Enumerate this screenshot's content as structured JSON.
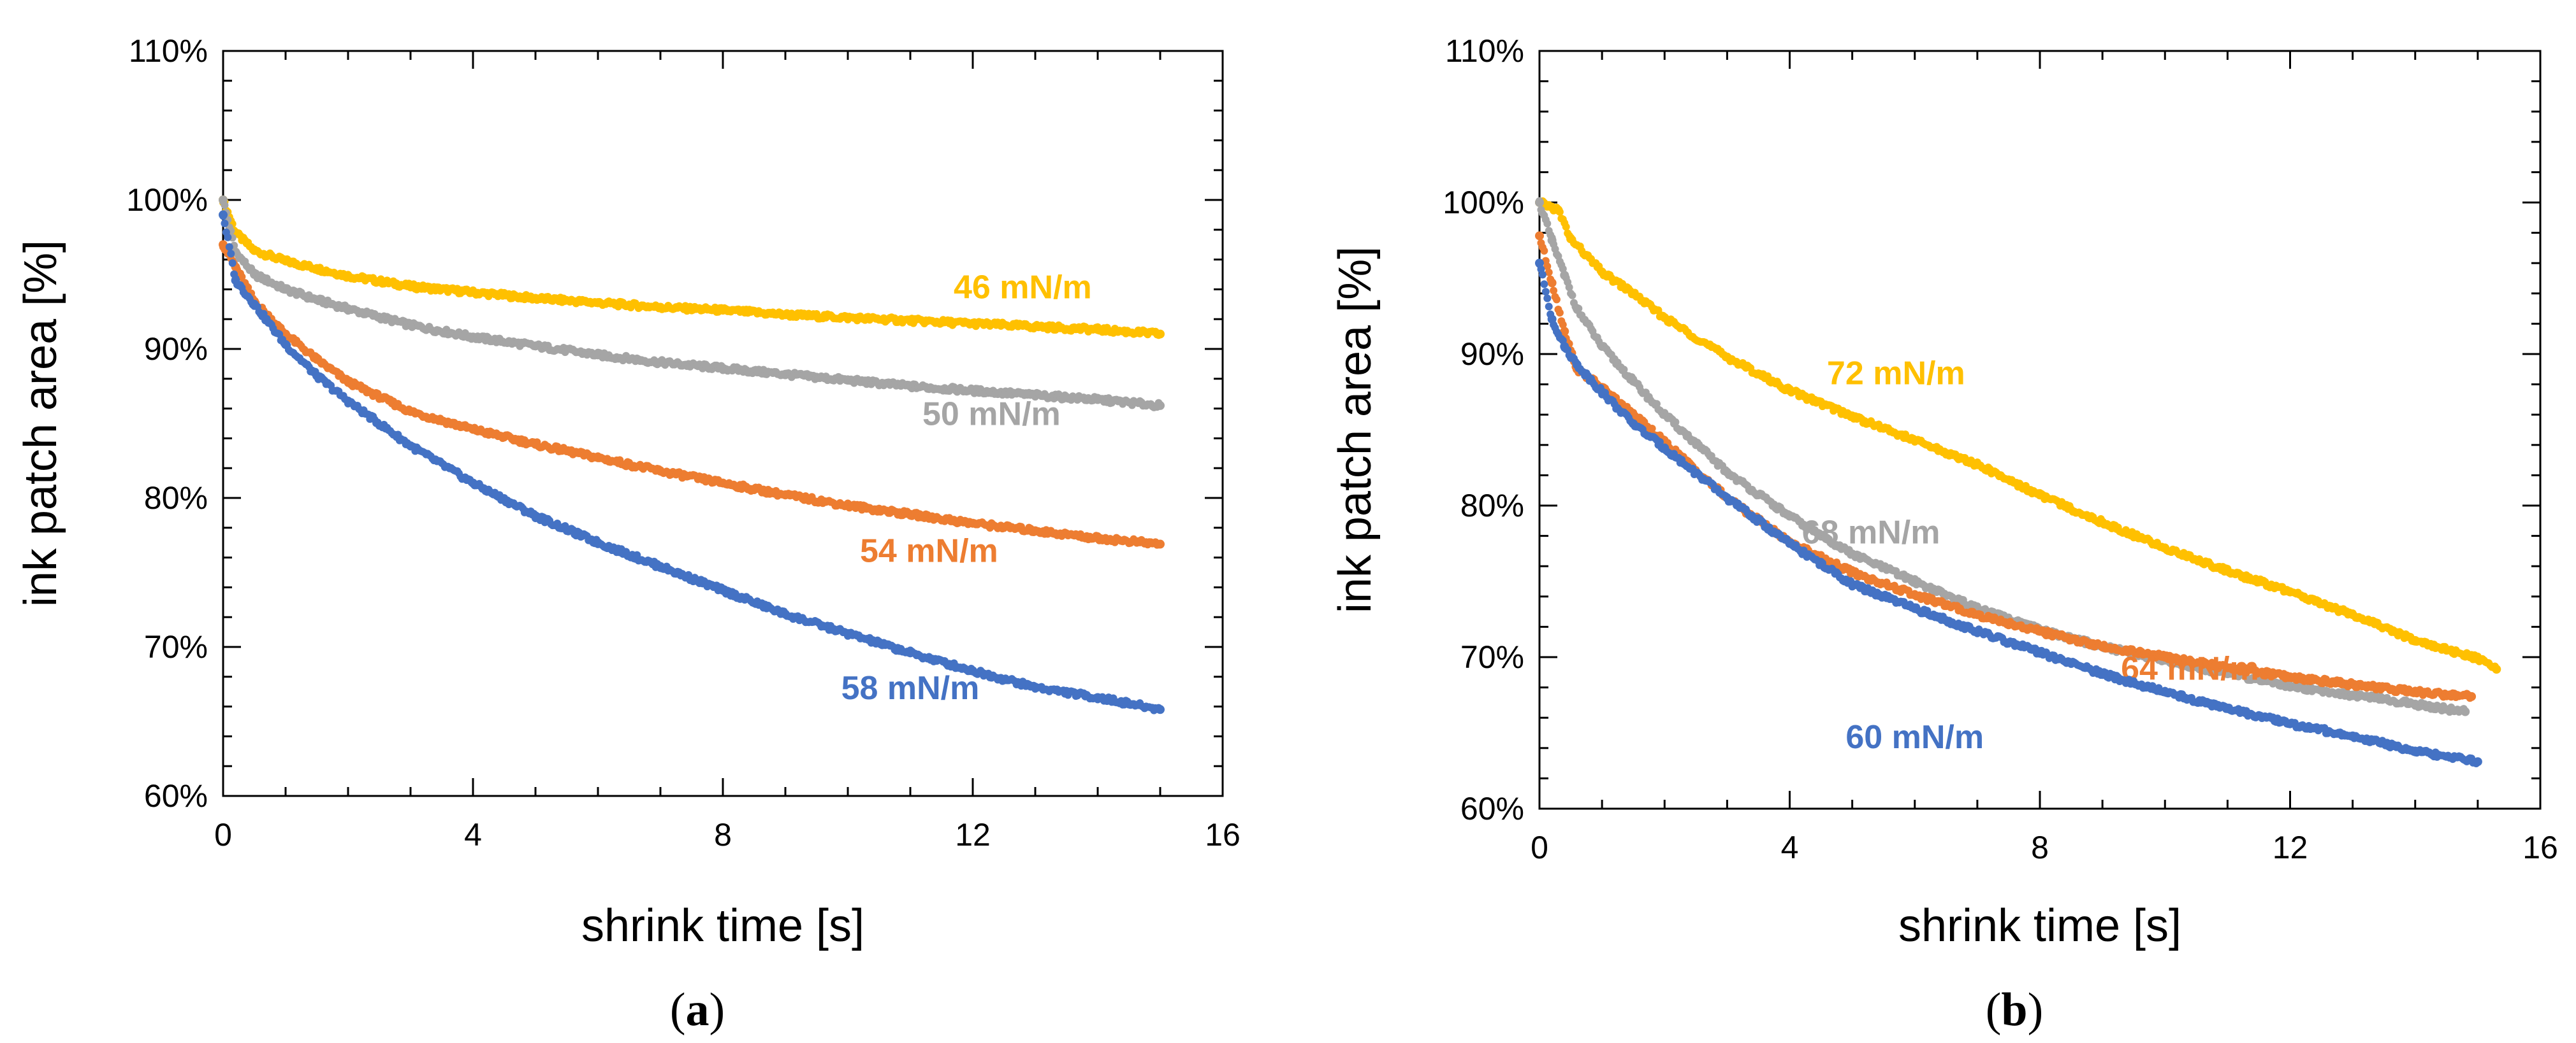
{
  "chart_data": [
    {
      "type": "scatter",
      "panel": "(a)",
      "panel_letter": "a",
      "xlabel": "shrink time [s]",
      "ylabel": "ink patch area [%]",
      "xlim": [
        0,
        16
      ],
      "ylim": [
        60,
        110
      ],
      "xticks": [
        0,
        4,
        8,
        12,
        16
      ],
      "yticks": [
        60,
        70,
        80,
        90,
        100,
        110
      ],
      "ytick_suffix": "%",
      "grid": false,
      "series": [
        {
          "name": "46 mN/m",
          "color": "#FFC000",
          "label_at": [
            12.8,
            93.4
          ],
          "x": [
            0,
            0.2,
            0.5,
            1,
            1.5,
            2,
            3,
            4,
            5,
            6,
            7,
            8,
            9,
            10,
            11,
            12,
            13,
            14,
            15
          ],
          "y": [
            100,
            97.8,
            96.6,
            95.9,
            95.4,
            94.9,
            94.2,
            93.8,
            93.4,
            93.1,
            92.8,
            92.6,
            92.3,
            92.1,
            91.9,
            91.7,
            91.5,
            91.3,
            91.0
          ]
        },
        {
          "name": "50 mN/m",
          "color": "#A5A5A5",
          "label_at": [
            12.3,
            84.9
          ],
          "x": [
            0,
            0.2,
            0.5,
            1,
            1.5,
            2,
            3,
            4,
            5,
            6,
            7,
            8,
            9,
            10,
            11,
            12,
            13,
            14,
            15
          ],
          "y": [
            100,
            96.5,
            95.0,
            94.0,
            93.3,
            92.7,
            91.6,
            90.8,
            90.2,
            89.6,
            89.1,
            88.7,
            88.3,
            87.9,
            87.5,
            87.2,
            86.9,
            86.6,
            86.2
          ]
        },
        {
          "name": "54 mN/m",
          "color": "#ED7D31",
          "label_at": [
            11.3,
            75.7
          ],
          "x": [
            0,
            0.2,
            0.5,
            1,
            1.5,
            2,
            3,
            4,
            5,
            6,
            7,
            8,
            9,
            10,
            11,
            12,
            13,
            14,
            15
          ],
          "y": [
            97,
            95.5,
            93.2,
            91.0,
            89.3,
            87.8,
            85.8,
            84.6,
            83.6,
            82.7,
            81.8,
            81.0,
            80.2,
            79.5,
            78.9,
            78.3,
            77.8,
            77.3,
            76.9
          ]
        },
        {
          "name": "58 mN/m",
          "color": "#4472C4",
          "label_at": [
            11.0,
            66.5
          ],
          "x": [
            0,
            0.2,
            0.5,
            1,
            1.5,
            2,
            3,
            4,
            5,
            6,
            7,
            8,
            9,
            10,
            11,
            12,
            13,
            14,
            15
          ],
          "y": [
            99,
            94.6,
            93.0,
            90.3,
            88.2,
            86.5,
            83.5,
            81.0,
            78.8,
            77.0,
            75.4,
            73.8,
            72.2,
            70.9,
            69.6,
            68.4,
            67.3,
            66.6,
            65.8
          ]
        }
      ]
    },
    {
      "type": "scatter",
      "panel": "(b)",
      "panel_letter": "b",
      "xlabel": "shrink time [s]",
      "ylabel": "ink patch area [%]",
      "xlim": [
        0,
        16
      ],
      "ylim": [
        60,
        110
      ],
      "xticks": [
        0,
        4,
        8,
        12,
        16
      ],
      "yticks": [
        60,
        70,
        80,
        90,
        100,
        110
      ],
      "ytick_suffix": "%",
      "grid": false,
      "series": [
        {
          "name": "72 mN/m",
          "color": "#FFC000",
          "label_at": [
            5.7,
            88.0
          ],
          "x": [
            0,
            0.3,
            0.5,
            1,
            1.5,
            2,
            3,
            4,
            5,
            6,
            7,
            8,
            9,
            10,
            11,
            12,
            13,
            14,
            15,
            15.3
          ],
          "y": [
            100,
            99.5,
            97.6,
            95.4,
            94.0,
            92.4,
            89.8,
            87.6,
            85.9,
            84.3,
            82.7,
            80.7,
            78.9,
            77.2,
            75.7,
            74.3,
            72.8,
            71.1,
            69.9,
            69.2
          ]
        },
        {
          "name": "68 mN/m",
          "color": "#A5A5A5",
          "label_at": [
            5.3,
            77.5
          ],
          "x": [
            0,
            0.2,
            0.4,
            0.6,
            1,
            1.5,
            2,
            3,
            4,
            5,
            6,
            7,
            8,
            9,
            10,
            11,
            12,
            13,
            14,
            14.8
          ],
          "y": [
            100,
            97.5,
            95.2,
            93.0,
            90.5,
            88.2,
            86.0,
            82.2,
            79.3,
            76.8,
            75.0,
            73.2,
            71.8,
            70.7,
            69.8,
            68.9,
            68.1,
            67.5,
            66.9,
            66.4
          ]
        },
        {
          "name": "64 mN/m",
          "color": "#ED7D31",
          "label_at": [
            10.4,
            68.5
          ],
          "x": [
            0,
            0.2,
            0.4,
            0.6,
            1,
            1.5,
            2,
            3,
            4,
            5,
            6,
            7,
            8,
            9,
            10,
            11,
            12,
            13,
            14,
            14.9
          ],
          "y": [
            97.8,
            94.7,
            91.5,
            89.0,
            87.8,
            86.0,
            84.2,
            80.5,
            77.6,
            75.6,
            74.1,
            72.8,
            71.7,
            70.7,
            70.0,
            69.3,
            68.7,
            68.2,
            67.7,
            67.4
          ]
        },
        {
          "name": "60 mN/m",
          "color": "#4472C4",
          "label_at": [
            6.0,
            64.0
          ],
          "x": [
            0,
            0.2,
            0.4,
            0.6,
            1,
            1.5,
            2,
            3,
            4,
            5,
            6,
            7,
            8,
            9,
            10,
            11,
            12,
            13,
            14,
            15
          ],
          "y": [
            96,
            92.3,
            90.5,
            89.3,
            87.5,
            85.4,
            83.8,
            80.5,
            77.5,
            74.8,
            73.2,
            71.7,
            70.3,
            68.9,
            67.7,
            66.6,
            65.6,
            64.8,
            63.8,
            63.1
          ]
        }
      ]
    }
  ]
}
